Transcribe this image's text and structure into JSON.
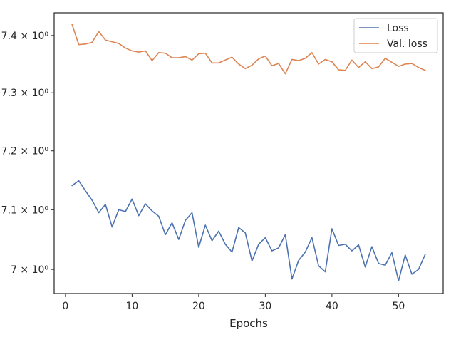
{
  "chart_data": {
    "type": "line",
    "title": "",
    "xlabel": "Epochs",
    "ylabel": "",
    "yscale": "log",
    "xlim": [
      -1.7,
      56.7
    ],
    "ylim": [
      6.96,
      7.44
    ],
    "grid": false,
    "legend_position": "top-right",
    "x_ticks": [
      0,
      10,
      20,
      30,
      40,
      50
    ],
    "x_tick_labels": [
      "0",
      "10",
      "20",
      "30",
      "40",
      "50"
    ],
    "y_ticks": [
      7.0,
      7.1,
      7.2,
      7.3,
      7.4
    ],
    "y_tick_labels": [
      "7 × 10⁰",
      "7.1 × 10⁰",
      "7.2 × 10⁰",
      "7.3 × 10⁰",
      "7.4 × 10⁰"
    ],
    "x": [
      1,
      2,
      3,
      4,
      5,
      6,
      7,
      8,
      9,
      10,
      11,
      12,
      13,
      14,
      15,
      16,
      17,
      18,
      19,
      20,
      21,
      22,
      23,
      24,
      25,
      26,
      27,
      28,
      29,
      30,
      31,
      32,
      33,
      34,
      35,
      36,
      37,
      38,
      39,
      40,
      41,
      42,
      43,
      44,
      45,
      46,
      47,
      48,
      49,
      50,
      51,
      52,
      53,
      54
    ],
    "series": [
      {
        "name": "Loss",
        "color": "#4c72b0",
        "values": [
          7.141,
          7.149,
          7.132,
          7.116,
          7.095,
          7.109,
          7.071,
          7.1,
          7.097,
          7.118,
          7.09,
          7.11,
          7.098,
          7.089,
          7.058,
          7.078,
          7.05,
          7.082,
          7.095,
          7.037,
          7.074,
          7.048,
          7.064,
          7.042,
          7.029,
          7.07,
          7.061,
          7.014,
          7.042,
          7.053,
          7.031,
          7.036,
          7.058,
          6.984,
          7.015,
          7.029,
          7.053,
          7.006,
          6.996,
          7.068,
          7.04,
          7.042,
          7.031,
          7.041,
          7.004,
          7.038,
          7.01,
          7.007,
          7.028,
          6.981,
          7.024,
          6.992,
          7.0,
          7.025
        ]
      },
      {
        "name": "Val. loss",
        "color": "#dd8452",
        "values": [
          7.419,
          7.384,
          7.385,
          7.388,
          7.407,
          7.392,
          7.389,
          7.386,
          7.378,
          7.373,
          7.371,
          7.373,
          7.356,
          7.37,
          7.369,
          7.361,
          7.361,
          7.363,
          7.357,
          7.368,
          7.369,
          7.352,
          7.352,
          7.357,
          7.362,
          7.35,
          7.342,
          7.348,
          7.359,
          7.364,
          7.347,
          7.351,
          7.333,
          7.358,
          7.356,
          7.36,
          7.37,
          7.35,
          7.358,
          7.354,
          7.34,
          7.339,
          7.357,
          7.344,
          7.354,
          7.342,
          7.345,
          7.36,
          7.353,
          7.346,
          7.35,
          7.351,
          7.344,
          7.339
        ]
      }
    ]
  }
}
